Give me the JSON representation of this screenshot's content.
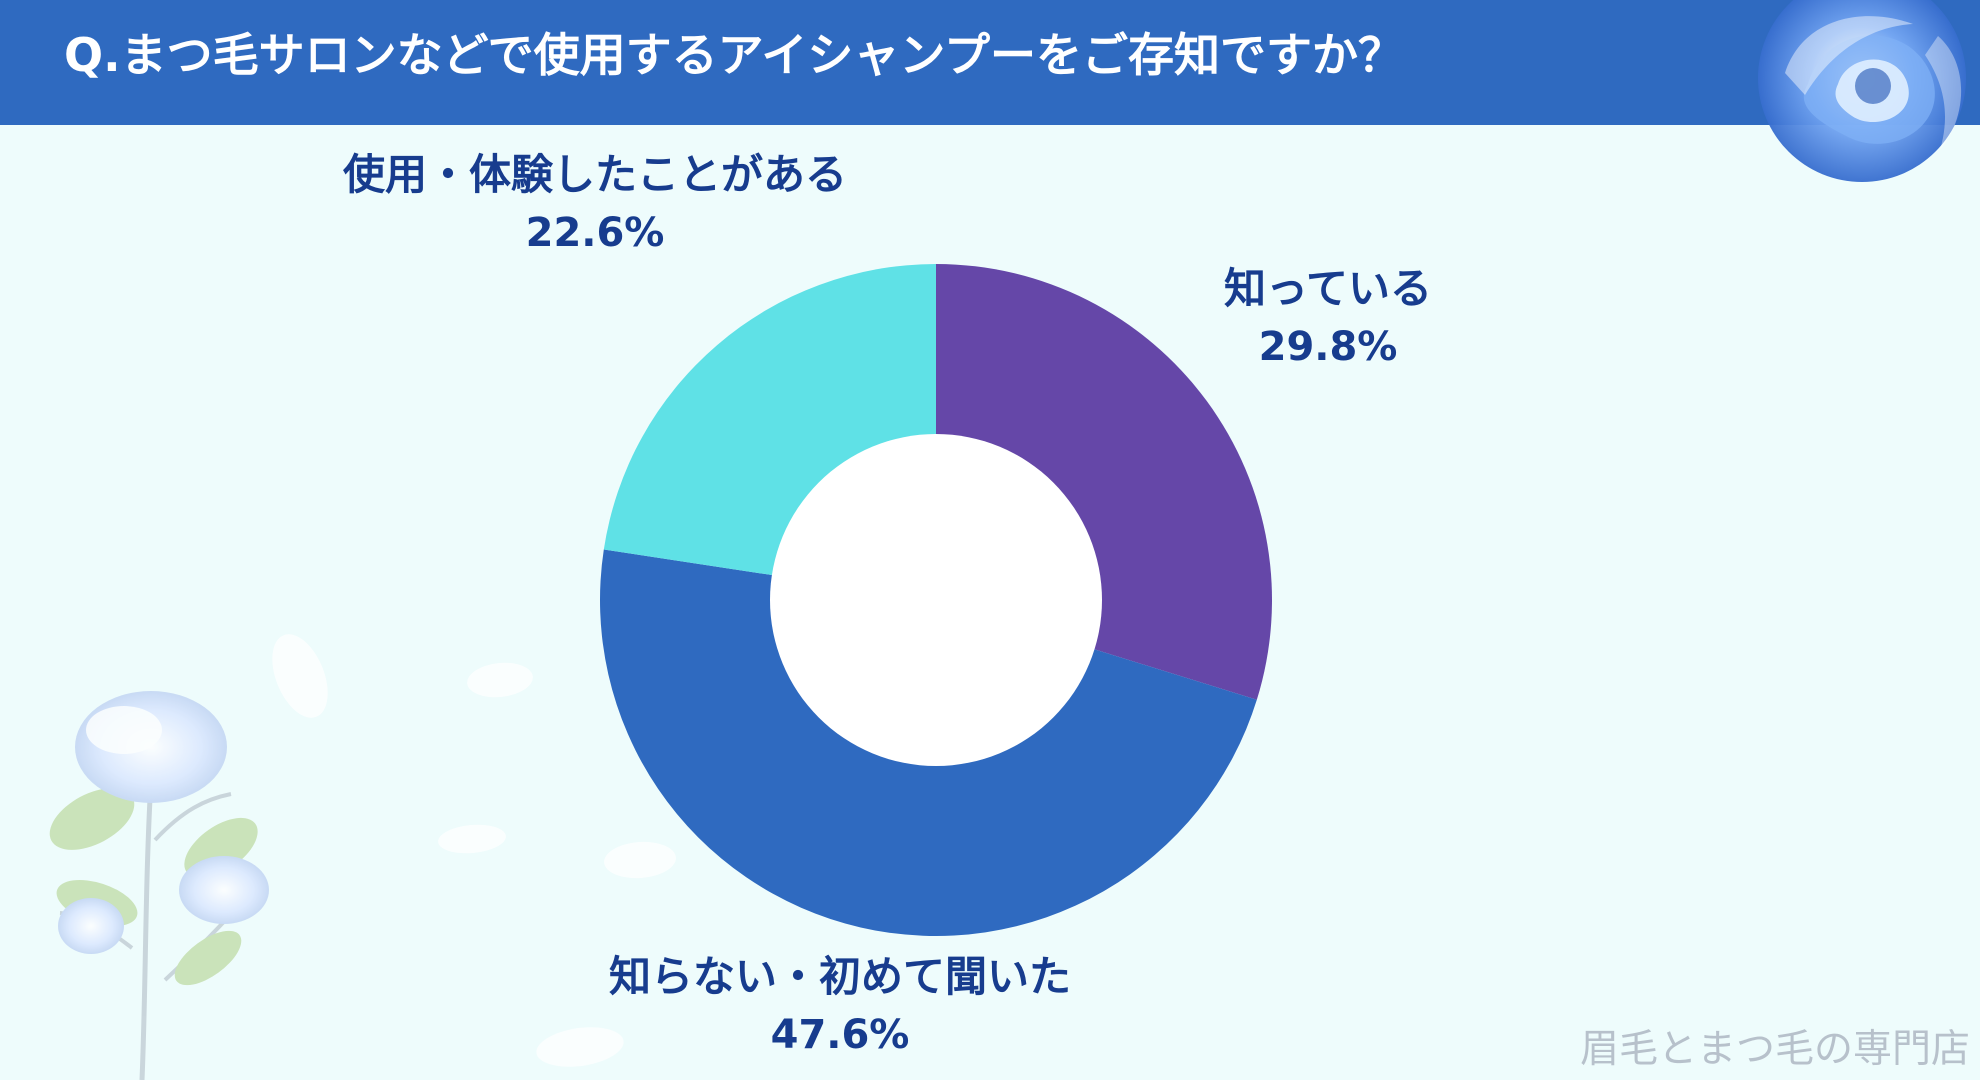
{
  "title": "Q.まつ毛サロンなどで使用するアイシャンプーをご存知ですか？",
  "watermark": "眉毛とまつ毛の専門店",
  "colors": {
    "header": "#2f6ac0",
    "background": "#eefcfc",
    "label_text": "#173c8e",
    "segment_1": "#6547a8",
    "segment_2": "#2f6ac0",
    "segment_3": "#5fe1e6"
  },
  "chart_data": {
    "type": "pie",
    "title": "",
    "categories": [
      "知っている",
      "知らない・初めて聞いた",
      "使用・体験したことがある"
    ],
    "values": [
      29.8,
      47.6,
      22.6
    ],
    "value_labels": [
      "29.8%",
      "47.6%",
      "22.6%"
    ]
  }
}
